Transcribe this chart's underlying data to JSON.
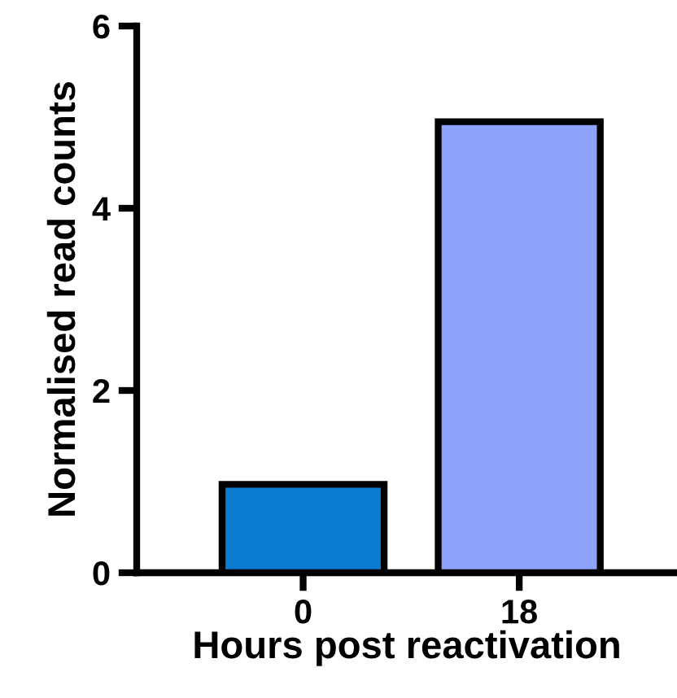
{
  "chart_data": {
    "type": "bar",
    "xlabel": "Hours post reactivation",
    "ylabel": "Normalised read counts",
    "categories": [
      "0",
      "18"
    ],
    "values": [
      0.97,
      4.95
    ],
    "colors": [
      "#0a7bd0",
      "#8ca2fb"
    ],
    "ylim": [
      0,
      6
    ],
    "yticks": [
      0,
      2,
      4,
      6
    ],
    "grid": false,
    "legend": false
  }
}
